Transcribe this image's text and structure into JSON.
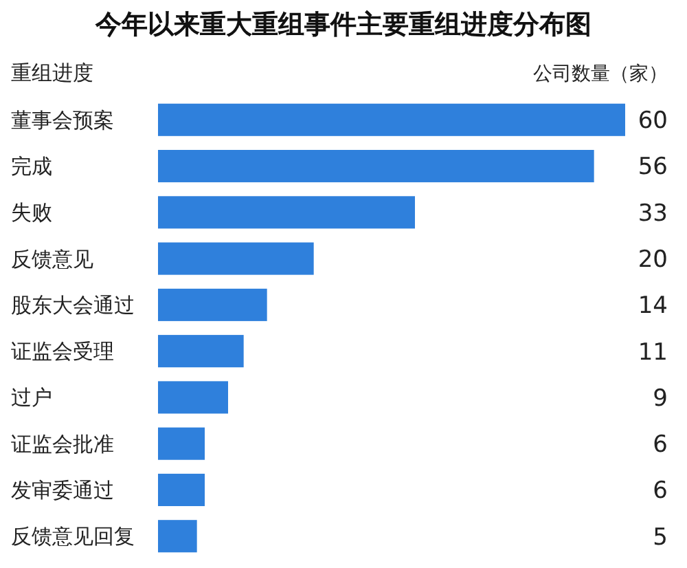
{
  "chart_data": {
    "type": "bar",
    "orientation": "horizontal",
    "title": "今年以来重大重组事件主要重组进度分布图",
    "ylabel": "重组进度",
    "xlabel": "公司数量（家）",
    "categories": [
      "董事会预案",
      "完成",
      "失败",
      "反馈意见",
      "股东大会通过",
      "证监会受理",
      "过户",
      "证监会批准",
      "发审委通过",
      "反馈意见回复"
    ],
    "values": [
      60,
      56,
      33,
      20,
      14,
      11,
      9,
      6,
      6,
      5
    ],
    "color": "#2f80dc",
    "data_labels": true
  }
}
